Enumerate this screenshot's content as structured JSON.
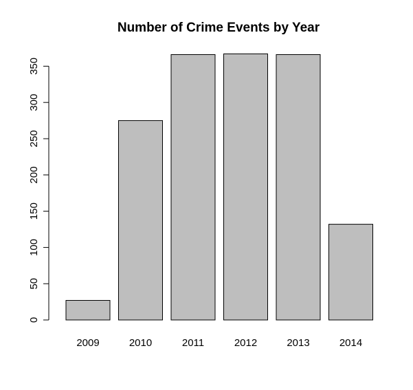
{
  "chart_data": {
    "type": "bar",
    "title": "Number of Crime Events by Year",
    "xlabel": "",
    "ylabel": "",
    "categories": [
      "2009",
      "2010",
      "2011",
      "2012",
      "2013",
      "2014"
    ],
    "values": [
      27,
      275,
      366,
      367,
      366,
      132
    ],
    "ylim": [
      0,
      367
    ],
    "yticks": [
      0,
      50,
      100,
      150,
      200,
      250,
      300,
      350
    ],
    "bar_color": "#bebebe",
    "bar_border_color": "#000000",
    "grid": false,
    "legend": "none"
  }
}
